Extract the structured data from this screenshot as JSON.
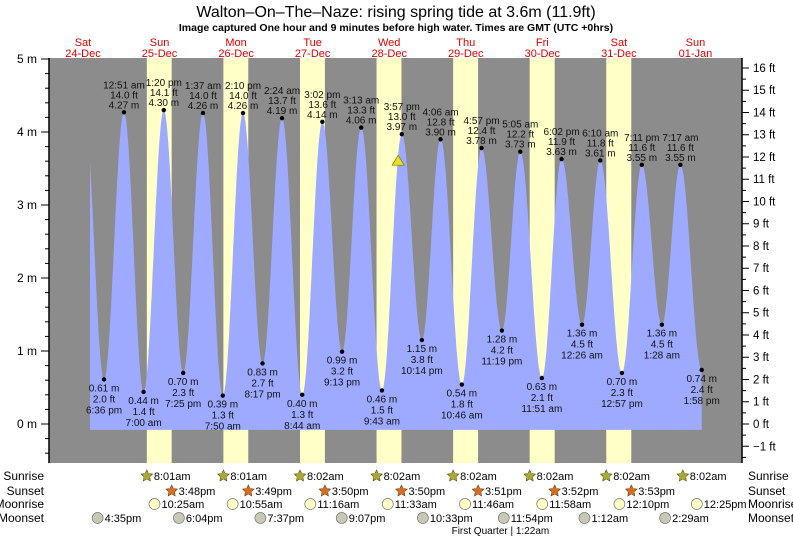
{
  "title": "Walton–On–The–Naze: rising  spring tide at 3.6m (11.9ft)",
  "subtitle": "Image captured One hour and 9 minutes before high water. Times are GMT (UTC +0hrs)",
  "colors": {
    "night": "#8c8c8c",
    "day": "#ffffc8",
    "water": "#9eaaff",
    "day_label": "#e00000",
    "sunrise_icon": "#a8a838",
    "sunset_icon": "#d86a2a",
    "moonrise_icon": "#ffffc8",
    "moonset_icon": "#c8c8b4",
    "now_marker": "#e8e020"
  },
  "chart_data": {
    "type": "area",
    "title": "Walton–On–The–Naze: rising  spring tide at 3.6m (11.9ft)",
    "ylim_m": [
      -0.53,
      5.04
    ],
    "y_left_ticks": [
      "0 m",
      "1 m",
      "2 m",
      "3 m",
      "4 m",
      "5 m"
    ],
    "y_right_ticks": [
      "−1 ft",
      "0 ft",
      "1 ft",
      "2 ft",
      "3 ft",
      "4 ft",
      "5 ft",
      "6 ft",
      "7 ft",
      "8 ft",
      "9 ft",
      "10 ft",
      "11 ft",
      "12 ft",
      "13 ft",
      "14 ft",
      "15 ft",
      "16 ft"
    ],
    "days": [
      {
        "dow": "Sat",
        "date": "24-Dec"
      },
      {
        "dow": "Sun",
        "date": "25-Dec"
      },
      {
        "dow": "Mon",
        "date": "26-Dec"
      },
      {
        "dow": "Tue",
        "date": "27-Dec"
      },
      {
        "dow": "Wed",
        "date": "28-Dec"
      },
      {
        "dow": "Thu",
        "date": "29-Dec"
      },
      {
        "dow": "Fri",
        "date": "30-Dec"
      },
      {
        "dow": "Sat",
        "date": "31-Dec"
      },
      {
        "dow": "Sun",
        "date": "01-Jan"
      }
    ],
    "extremes": [
      {
        "type": "low",
        "day": "24-Dec",
        "time": "6:36 pm",
        "m": "0.61 m",
        "ft": "2.0 ft",
        "value": 0.61
      },
      {
        "type": "high",
        "day": "25-Dec",
        "time": "12:51 am",
        "m": "4.27 m",
        "ft": "14.0 ft",
        "value": 4.27
      },
      {
        "type": "low",
        "day": "25-Dec",
        "time": "7:00 am",
        "m": "0.44 m",
        "ft": "1.4 ft",
        "value": 0.44
      },
      {
        "type": "high",
        "day": "25-Dec",
        "time": "1:20 pm",
        "m": "4.30 m",
        "ft": "14.1 ft",
        "value": 4.3
      },
      {
        "type": "low",
        "day": "25-Dec",
        "time": "7:25 pm",
        "m": "0.70 m",
        "ft": "2.3 ft",
        "value": 0.7
      },
      {
        "type": "high",
        "day": "26-Dec",
        "time": "1:37 am",
        "m": "4.26 m",
        "ft": "14.0 ft",
        "value": 4.26
      },
      {
        "type": "low",
        "day": "26-Dec",
        "time": "7:50 am",
        "m": "0.39 m",
        "ft": "1.3 ft",
        "value": 0.39
      },
      {
        "type": "high",
        "day": "26-Dec",
        "time": "2:10 pm",
        "m": "4.26 m",
        "ft": "14.0 ft",
        "value": 4.26
      },
      {
        "type": "low",
        "day": "26-Dec",
        "time": "8:17 pm",
        "m": "0.83 m",
        "ft": "2.7 ft",
        "value": 0.83
      },
      {
        "type": "high",
        "day": "27-Dec",
        "time": "2:24 am",
        "m": "4.19 m",
        "ft": "13.7 ft",
        "value": 4.19
      },
      {
        "type": "low",
        "day": "27-Dec",
        "time": "8:44 am",
        "m": "0.40 m",
        "ft": "1.3 ft",
        "value": 0.4
      },
      {
        "type": "high",
        "day": "27-Dec",
        "time": "3:02 pm",
        "m": "4.14 m",
        "ft": "13.6 ft",
        "value": 4.14
      },
      {
        "type": "low",
        "day": "27-Dec",
        "time": "9:13 pm",
        "m": "0.99 m",
        "ft": "3.2 ft",
        "value": 0.99
      },
      {
        "type": "high",
        "day": "28-Dec",
        "time": "3:13 am",
        "m": "4.06 m",
        "ft": "13.3 ft",
        "value": 4.06
      },
      {
        "type": "low",
        "day": "28-Dec",
        "time": "9:43 am",
        "m": "0.46 m",
        "ft": "1.5 ft",
        "value": 0.46
      },
      {
        "type": "high",
        "day": "28-Dec",
        "time": "3:57 pm",
        "m": "3.97 m",
        "ft": "13.0 ft",
        "value": 3.97
      },
      {
        "type": "low",
        "day": "28-Dec",
        "time": "10:14 pm",
        "m": "1.15 m",
        "ft": "3.8 ft",
        "value": 1.15
      },
      {
        "type": "high",
        "day": "29-Dec",
        "time": "4:06 am",
        "m": "3.90 m",
        "ft": "12.8 ft",
        "value": 3.9
      },
      {
        "type": "low",
        "day": "29-Dec",
        "time": "10:46 am",
        "m": "0.54 m",
        "ft": "1.8 ft",
        "value": 0.54
      },
      {
        "type": "high",
        "day": "29-Dec",
        "time": "4:57 pm",
        "m": "3.78 m",
        "ft": "12.4 ft",
        "value": 3.78
      },
      {
        "type": "low",
        "day": "29-Dec",
        "time": "11:19 pm",
        "m": "1.28 m",
        "ft": "4.2 ft",
        "value": 1.28
      },
      {
        "type": "high",
        "day": "30-Dec",
        "time": "5:05 am",
        "m": "3.73 m",
        "ft": "12.2 ft",
        "value": 3.73
      },
      {
        "type": "low",
        "day": "30-Dec",
        "time": "11:51 am",
        "m": "0.63 m",
        "ft": "2.1 ft",
        "value": 0.63
      },
      {
        "type": "high",
        "day": "30-Dec",
        "time": "6:02 pm",
        "m": "3.63 m",
        "ft": "11.9 ft",
        "value": 3.63
      },
      {
        "type": "low",
        "day": "31-Dec",
        "time": "12:26 am",
        "m": "1.36 m",
        "ft": "4.5 ft",
        "value": 1.36
      },
      {
        "type": "high",
        "day": "31-Dec",
        "time": "6:10 am",
        "m": "3.61 m",
        "ft": "11.8 ft",
        "value": 3.61
      },
      {
        "type": "low",
        "day": "31-Dec",
        "time": "12:57 pm",
        "m": "0.70 m",
        "ft": "2.3 ft",
        "value": 0.7
      },
      {
        "type": "high",
        "day": "31-Dec",
        "time": "7:11 pm",
        "m": "3.55 m",
        "ft": "11.6 ft",
        "value": 3.55
      },
      {
        "type": "low",
        "day": "01-Jan",
        "time": "1:28 am",
        "m": "1.36 m",
        "ft": "4.5 ft",
        "value": 1.36
      },
      {
        "type": "high",
        "day": "01-Jan",
        "time": "7:17 am",
        "m": "3.55 m",
        "ft": "11.6 ft",
        "value": 3.55
      },
      {
        "type": "low",
        "day": "01-Jan",
        "time": "1:58 pm",
        "m": "0.74 m",
        "ft": "2.4 ft",
        "value": 0.74
      }
    ],
    "now_marker": {
      "day": "28-Dec",
      "time": "2:48 pm",
      "value": 3.6
    }
  },
  "astro": {
    "row_labels": {
      "sunrise": "Sunrise",
      "sunset": "Sunset",
      "moonrise": "Moonrise",
      "moonset": "Moonset"
    },
    "sunrise": [
      {
        "day": "25-Dec",
        "time": "8:01am"
      },
      {
        "day": "26-Dec",
        "time": "8:01am"
      },
      {
        "day": "27-Dec",
        "time": "8:02am"
      },
      {
        "day": "28-Dec",
        "time": "8:02am"
      },
      {
        "day": "29-Dec",
        "time": "8:02am"
      },
      {
        "day": "30-Dec",
        "time": "8:02am"
      },
      {
        "day": "31-Dec",
        "time": "8:02am"
      },
      {
        "day": "01-Jan",
        "time": "8:02am"
      }
    ],
    "sunset": [
      {
        "day": "25-Dec",
        "time": "3:48pm"
      },
      {
        "day": "26-Dec",
        "time": "3:49pm"
      },
      {
        "day": "27-Dec",
        "time": "3:50pm"
      },
      {
        "day": "28-Dec",
        "time": "3:50pm"
      },
      {
        "day": "29-Dec",
        "time": "3:51pm"
      },
      {
        "day": "30-Dec",
        "time": "3:52pm"
      },
      {
        "day": "31-Dec",
        "time": "3:53pm"
      }
    ],
    "moonrise": [
      {
        "day": "25-Dec",
        "time": "10:25am"
      },
      {
        "day": "26-Dec",
        "time": "10:55am"
      },
      {
        "day": "27-Dec",
        "time": "11:16am"
      },
      {
        "day": "28-Dec",
        "time": "11:33am"
      },
      {
        "day": "29-Dec",
        "time": "11:46am"
      },
      {
        "day": "30-Dec",
        "time": "11:58am"
      },
      {
        "day": "31-Dec",
        "time": "12:10pm"
      },
      {
        "day": "01-Jan",
        "time": "12:25pm"
      }
    ],
    "moonset": [
      {
        "day": "24-Dec",
        "time": "4:35pm"
      },
      {
        "day": "25-Dec",
        "time": "6:04pm"
      },
      {
        "day": "26-Dec",
        "time": "7:37pm"
      },
      {
        "day": "27-Dec",
        "time": "9:07pm"
      },
      {
        "day": "28-Dec",
        "time": "10:33pm"
      },
      {
        "day": "29-Dec",
        "time": "11:54pm"
      },
      {
        "day": "31-Dec",
        "time": "1:12am"
      },
      {
        "day": "01-Jan",
        "time": "2:29am"
      }
    ],
    "moon_phase": {
      "label": "First Quarter | 1:22am",
      "day": "30-Dec",
      "time": "1:22am"
    }
  }
}
